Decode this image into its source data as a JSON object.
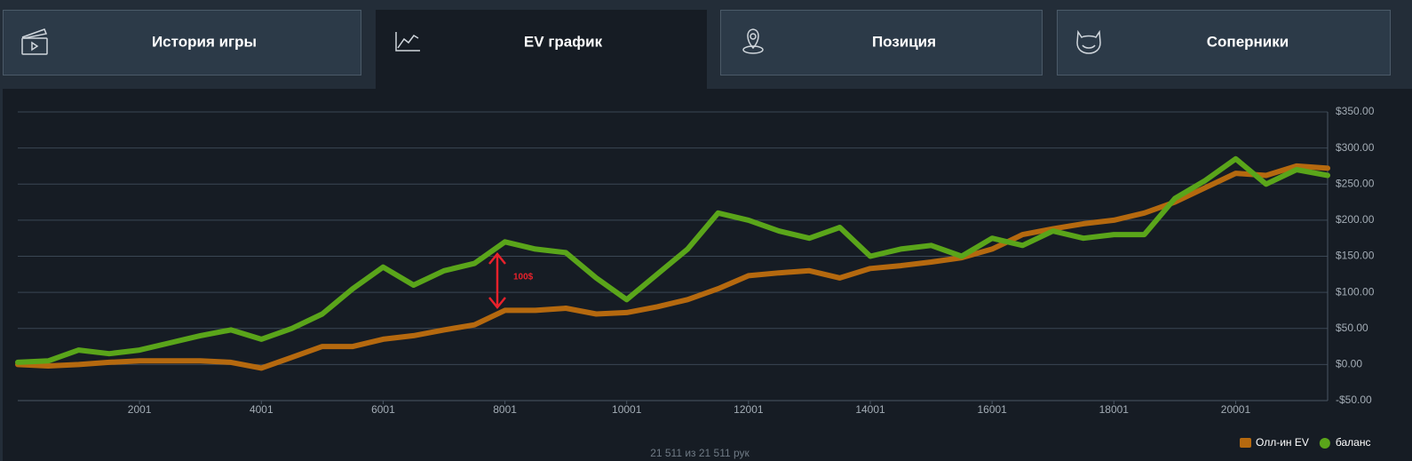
{
  "tabs": [
    {
      "label": "История игры"
    },
    {
      "label": "EV график"
    },
    {
      "label": "Позиция"
    },
    {
      "label": "Соперники"
    }
  ],
  "chart_data": {
    "type": "line",
    "x": [
      1,
      501,
      1001,
      1501,
      2001,
      2501,
      3001,
      3501,
      4001,
      4501,
      5001,
      5501,
      6001,
      6501,
      7001,
      7501,
      8001,
      8501,
      9001,
      9501,
      10001,
      10501,
      11001,
      11501,
      12001,
      12501,
      13001,
      13501,
      14001,
      14501,
      15001,
      15501,
      16001,
      16501,
      17001,
      17501,
      18001,
      18501,
      19001,
      19501,
      20001,
      20501,
      21001,
      21511
    ],
    "series": [
      {
        "name": "Олл-ин EV",
        "color": "#b5690f",
        "values": [
          0,
          -2,
          0,
          3,
          5,
          5,
          5,
          3,
          -5,
          10,
          25,
          25,
          35,
          40,
          48,
          55,
          75,
          75,
          78,
          70,
          72,
          80,
          90,
          105,
          123,
          127,
          130,
          120,
          133,
          137,
          142,
          148,
          160,
          180,
          188,
          195,
          200,
          210,
          225,
          245,
          265,
          262,
          275,
          272
        ]
      },
      {
        "name": "баланс",
        "color": "#5aa51a",
        "values": [
          3,
          5,
          20,
          15,
          20,
          30,
          40,
          48,
          35,
          50,
          70,
          105,
          135,
          110,
          130,
          140,
          170,
          160,
          155,
          120,
          90,
          125,
          160,
          210,
          200,
          185,
          175,
          190,
          150,
          160,
          165,
          150,
          175,
          165,
          185,
          175,
          180,
          180,
          230,
          255,
          285,
          250,
          270,
          262
        ]
      }
    ],
    "xlim": [
      1,
      21511
    ],
    "xticks": [
      2001,
      4001,
      6001,
      8001,
      10001,
      12001,
      14001,
      16001,
      18001,
      20001
    ],
    "ylim": [
      -50,
      350
    ],
    "yticks": [
      {
        "value": -50,
        "label": "-$50.00"
      },
      {
        "value": 0,
        "label": "$0.00"
      },
      {
        "value": 50,
        "label": "$50.00"
      },
      {
        "value": 100,
        "label": "$100.00"
      },
      {
        "value": 150,
        "label": "$150.00"
      },
      {
        "value": 200,
        "label": "$200.00"
      },
      {
        "value": 250,
        "label": "$250.00"
      },
      {
        "value": 300,
        "label": "$300.00"
      },
      {
        "value": 350,
        "label": "$350.00"
      }
    ],
    "grid": true,
    "annotation": "100$"
  },
  "footer": "21 511 из 21 511 рук"
}
